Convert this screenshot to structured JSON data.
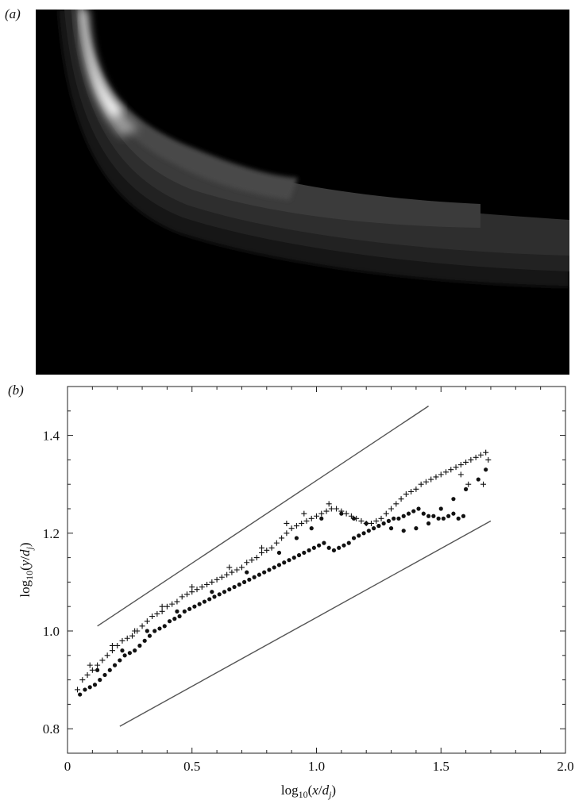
{
  "panel_a": {
    "label": "(a)"
  },
  "panel_b": {
    "label": "(b)"
  },
  "chart_data": {
    "type": "scatter",
    "xlabel": "log10(x/dj)",
    "ylabel": "log10(y/dj)",
    "xlim": [
      0.0,
      2.0
    ],
    "ylim": [
      0.75,
      1.5
    ],
    "x_ticks": [
      0,
      0.5,
      1.0,
      1.5,
      2.0
    ],
    "x_tick_labels": [
      "0",
      "0.5",
      "1.0",
      "1.5",
      "2.0"
    ],
    "y_ticks": [
      0.8,
      1.0,
      1.2,
      1.4
    ],
    "y_tick_labels": [
      "0.8",
      "1.0",
      "1.2",
      "1.4"
    ],
    "grid": false,
    "legend": "none",
    "series": [
      {
        "marker": "plus",
        "points": [
          [
            0.04,
            0.88
          ],
          [
            0.06,
            0.9
          ],
          [
            0.08,
            0.91
          ],
          [
            0.1,
            0.92
          ],
          [
            0.12,
            0.93
          ],
          [
            0.14,
            0.94
          ],
          [
            0.16,
            0.95
          ],
          [
            0.18,
            0.96
          ],
          [
            0.2,
            0.97
          ],
          [
            0.22,
            0.98
          ],
          [
            0.24,
            0.985
          ],
          [
            0.26,
            0.99
          ],
          [
            0.28,
            1.0
          ],
          [
            0.3,
            1.01
          ],
          [
            0.32,
            1.02
          ],
          [
            0.34,
            1.03
          ],
          [
            0.36,
            1.035
          ],
          [
            0.38,
            1.04
          ],
          [
            0.4,
            1.05
          ],
          [
            0.42,
            1.055
          ],
          [
            0.44,
            1.06
          ],
          [
            0.46,
            1.07
          ],
          [
            0.48,
            1.075
          ],
          [
            0.5,
            1.08
          ],
          [
            0.52,
            1.085
          ],
          [
            0.54,
            1.09
          ],
          [
            0.56,
            1.095
          ],
          [
            0.58,
            1.1
          ],
          [
            0.6,
            1.105
          ],
          [
            0.62,
            1.11
          ],
          [
            0.64,
            1.115
          ],
          [
            0.66,
            1.12
          ],
          [
            0.68,
            1.125
          ],
          [
            0.7,
            1.13
          ],
          [
            0.72,
            1.14
          ],
          [
            0.74,
            1.145
          ],
          [
            0.76,
            1.15
          ],
          [
            0.78,
            1.16
          ],
          [
            0.8,
            1.165
          ],
          [
            0.82,
            1.17
          ],
          [
            0.84,
            1.18
          ],
          [
            0.86,
            1.19
          ],
          [
            0.88,
            1.2
          ],
          [
            0.9,
            1.21
          ],
          [
            0.92,
            1.215
          ],
          [
            0.94,
            1.22
          ],
          [
            0.96,
            1.225
          ],
          [
            0.98,
            1.23
          ],
          [
            1.0,
            1.235
          ],
          [
            1.02,
            1.24
          ],
          [
            1.04,
            1.245
          ],
          [
            1.06,
            1.25
          ],
          [
            1.08,
            1.25
          ],
          [
            1.1,
            1.245
          ],
          [
            1.12,
            1.24
          ],
          [
            1.14,
            1.235
          ],
          [
            1.16,
            1.23
          ],
          [
            1.18,
            1.225
          ],
          [
            1.2,
            1.22
          ],
          [
            1.22,
            1.22
          ],
          [
            1.24,
            1.225
          ],
          [
            1.26,
            1.23
          ],
          [
            1.28,
            1.24
          ],
          [
            1.3,
            1.25
          ],
          [
            1.32,
            1.26
          ],
          [
            1.34,
            1.27
          ],
          [
            1.36,
            1.28
          ],
          [
            1.38,
            1.285
          ],
          [
            1.4,
            1.29
          ],
          [
            1.42,
            1.3
          ],
          [
            1.44,
            1.305
          ],
          [
            1.46,
            1.31
          ],
          [
            1.48,
            1.315
          ],
          [
            1.5,
            1.32
          ],
          [
            1.52,
            1.325
          ],
          [
            1.54,
            1.33
          ],
          [
            1.56,
            1.335
          ],
          [
            1.58,
            1.34
          ],
          [
            1.6,
            1.345
          ],
          [
            1.62,
            1.35
          ],
          [
            1.64,
            1.355
          ],
          [
            1.66,
            1.36
          ],
          [
            1.68,
            1.365
          ],
          [
            1.69,
            1.35
          ],
          [
            1.67,
            1.3
          ],
          [
            1.61,
            1.3
          ],
          [
            1.58,
            1.32
          ],
          [
            0.88,
            1.22
          ],
          [
            0.95,
            1.24
          ],
          [
            1.05,
            1.26
          ],
          [
            0.78,
            1.17
          ],
          [
            0.65,
            1.13
          ],
          [
            0.5,
            1.09
          ],
          [
            0.38,
            1.05
          ],
          [
            0.27,
            1.0
          ],
          [
            0.18,
            0.97
          ],
          [
            0.09,
            0.93
          ]
        ]
      },
      {
        "marker": "dot",
        "points": [
          [
            0.05,
            0.87
          ],
          [
            0.07,
            0.88
          ],
          [
            0.09,
            0.885
          ],
          [
            0.11,
            0.89
          ],
          [
            0.13,
            0.9
          ],
          [
            0.15,
            0.91
          ],
          [
            0.17,
            0.92
          ],
          [
            0.19,
            0.93
          ],
          [
            0.21,
            0.94
          ],
          [
            0.23,
            0.95
          ],
          [
            0.25,
            0.955
          ],
          [
            0.27,
            0.96
          ],
          [
            0.29,
            0.97
          ],
          [
            0.31,
            0.98
          ],
          [
            0.33,
            0.99
          ],
          [
            0.35,
            1.0
          ],
          [
            0.37,
            1.005
          ],
          [
            0.39,
            1.01
          ],
          [
            0.41,
            1.02
          ],
          [
            0.43,
            1.025
          ],
          [
            0.45,
            1.03
          ],
          [
            0.47,
            1.04
          ],
          [
            0.49,
            1.045
          ],
          [
            0.51,
            1.05
          ],
          [
            0.53,
            1.055
          ],
          [
            0.55,
            1.06
          ],
          [
            0.57,
            1.065
          ],
          [
            0.59,
            1.07
          ],
          [
            0.61,
            1.075
          ],
          [
            0.63,
            1.08
          ],
          [
            0.65,
            1.085
          ],
          [
            0.67,
            1.09
          ],
          [
            0.69,
            1.095
          ],
          [
            0.71,
            1.1
          ],
          [
            0.73,
            1.105
          ],
          [
            0.75,
            1.11
          ],
          [
            0.77,
            1.115
          ],
          [
            0.79,
            1.12
          ],
          [
            0.81,
            1.125
          ],
          [
            0.83,
            1.13
          ],
          [
            0.85,
            1.135
          ],
          [
            0.87,
            1.14
          ],
          [
            0.89,
            1.145
          ],
          [
            0.91,
            1.15
          ],
          [
            0.93,
            1.155
          ],
          [
            0.95,
            1.16
          ],
          [
            0.97,
            1.165
          ],
          [
            0.99,
            1.17
          ],
          [
            1.01,
            1.175
          ],
          [
            1.03,
            1.18
          ],
          [
            1.05,
            1.17
          ],
          [
            1.07,
            1.165
          ],
          [
            1.09,
            1.17
          ],
          [
            1.11,
            1.175
          ],
          [
            1.13,
            1.18
          ],
          [
            1.15,
            1.19
          ],
          [
            1.17,
            1.195
          ],
          [
            1.19,
            1.2
          ],
          [
            1.21,
            1.205
          ],
          [
            1.23,
            1.21
          ],
          [
            1.25,
            1.215
          ],
          [
            1.27,
            1.22
          ],
          [
            1.29,
            1.225
          ],
          [
            1.31,
            1.23
          ],
          [
            1.33,
            1.23
          ],
          [
            1.35,
            1.235
          ],
          [
            1.37,
            1.24
          ],
          [
            1.39,
            1.245
          ],
          [
            1.41,
            1.25
          ],
          [
            1.43,
            1.24
          ],
          [
            1.45,
            1.235
          ],
          [
            1.47,
            1.235
          ],
          [
            1.49,
            1.23
          ],
          [
            1.51,
            1.23
          ],
          [
            1.53,
            1.235
          ],
          [
            1.55,
            1.24
          ],
          [
            1.57,
            1.23
          ],
          [
            1.59,
            1.235
          ],
          [
            1.1,
            1.24
          ],
          [
            1.15,
            1.23
          ],
          [
            1.2,
            1.22
          ],
          [
            1.25,
            1.215
          ],
          [
            1.3,
            1.21
          ],
          [
            1.35,
            1.205
          ],
          [
            1.4,
            1.21
          ],
          [
            1.45,
            1.22
          ],
          [
            1.5,
            1.25
          ],
          [
            1.55,
            1.27
          ],
          [
            1.6,
            1.29
          ],
          [
            1.65,
            1.31
          ],
          [
            1.68,
            1.33
          ],
          [
            0.92,
            1.19
          ],
          [
            0.98,
            1.21
          ],
          [
            1.02,
            1.23
          ],
          [
            0.85,
            1.16
          ],
          [
            0.72,
            1.12
          ],
          [
            0.58,
            1.08
          ],
          [
            0.44,
            1.04
          ],
          [
            0.32,
            1.0
          ],
          [
            0.22,
            0.96
          ],
          [
            0.12,
            0.92
          ]
        ]
      }
    ],
    "reference_lines": [
      {
        "x": [
          0.12,
          1.45
        ],
        "y": [
          1.01,
          1.46
        ]
      },
      {
        "x": [
          0.21,
          1.7
        ],
        "y": [
          0.805,
          1.225
        ]
      }
    ]
  }
}
